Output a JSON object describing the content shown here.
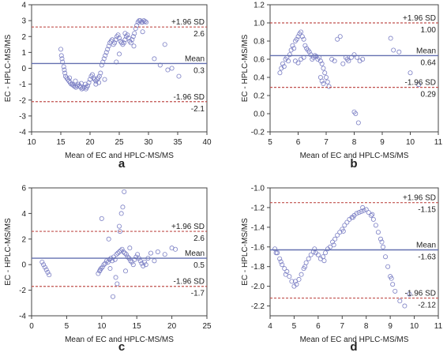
{
  "chart_data": [
    {
      "type": "scatter",
      "panel_label": "a",
      "xlabel": "Mean of EC and HPLC-MS/MS",
      "ylabel": "EC - HPLC-MS/MS",
      "xlim": [
        10,
        40
      ],
      "ylim": [
        -4,
        4
      ],
      "xticks": [
        "10",
        "15",
        "20",
        "25",
        "30",
        "35",
        "40"
      ],
      "yticks": [
        "-4",
        "-3",
        "-2",
        "-1",
        "0",
        "1",
        "2",
        "3",
        "4"
      ],
      "lines": [
        {
          "kind": "upper",
          "value": 2.6,
          "label": "+1.96 SD",
          "value_label": "2.6"
        },
        {
          "kind": "mean",
          "value": 0.3,
          "label": "Mean",
          "value_label": "0.3"
        },
        {
          "kind": "lower",
          "value": -2.1,
          "label": "-1.96 SD",
          "value_label": "-2.1"
        }
      ],
      "points": {
        "x": [
          15.0,
          15.1,
          15.2,
          15.3,
          15.5,
          15.6,
          15.7,
          15.8,
          16.0,
          16.2,
          16.4,
          16.6,
          16.8,
          17.0,
          17.2,
          17.4,
          17.6,
          17.8,
          18.0,
          18.2,
          18.4,
          18.6,
          18.8,
          19.0,
          19.2,
          19.3,
          19.4,
          19.6,
          19.8,
          20.0,
          20.2,
          20.4,
          20.6,
          20.8,
          21.0,
          21.2,
          21.4,
          21.6,
          21.5,
          21.8,
          22.0,
          22.2,
          22.4,
          22.6,
          22.8,
          23.0,
          23.2,
          23.4,
          23.6,
          23.8,
          24.0,
          24.2,
          24.4,
          24.6,
          24.8,
          25.0,
          25.2,
          25.4,
          25.6,
          25.8,
          26.0,
          26.2,
          26.4,
          26.6,
          26.8,
          27.0,
          27.2,
          27.4,
          27.6,
          27.8,
          28.0,
          28.2,
          28.4,
          28.6,
          28.8,
          29.0,
          29.2,
          29.4,
          29.6,
          29.0,
          31.0,
          32.0,
          32.8,
          33.3,
          34.0,
          35.2,
          24.5,
          25.0,
          26.0,
          27.5,
          21.0,
          22.5,
          16.5,
          17.5,
          18.5
        ],
        "y": [
          1.2,
          0.8,
          0.6,
          0.4,
          0.1,
          -0.1,
          -0.3,
          -0.5,
          -0.6,
          -0.7,
          -0.8,
          -0.9,
          -1.0,
          -1.0,
          -1.1,
          -1.15,
          -1.2,
          -1.1,
          -1.0,
          -1.1,
          -1.2,
          -1.3,
          -1.25,
          -1.2,
          -1.0,
          -1.3,
          -1.2,
          -1.1,
          -0.9,
          -0.7,
          -0.5,
          -0.4,
          -0.6,
          -0.7,
          -0.8,
          -0.7,
          -0.6,
          -0.5,
          -0.9,
          -0.3,
          0.2,
          0.4,
          0.6,
          0.8,
          1.0,
          1.2,
          1.4,
          1.6,
          1.7,
          1.8,
          1.5,
          1.6,
          1.8,
          2.0,
          2.1,
          1.9,
          1.7,
          1.6,
          1.5,
          1.6,
          1.8,
          2.0,
          2.1,
          1.9,
          1.7,
          1.6,
          1.8,
          2.0,
          2.2,
          2.5,
          2.7,
          2.9,
          3.0,
          3.0,
          2.9,
          2.9,
          3.0,
          2.95,
          2.9,
          2.3,
          0.6,
          0.2,
          1.5,
          -0.1,
          0.0,
          -0.5,
          0.4,
          0.9,
          2.2,
          1.4,
          -1.0,
          -0.7,
          -0.6,
          -0.8,
          -0.95
        ]
      }
    },
    {
      "type": "scatter",
      "panel_label": "b",
      "xlabel": "Mean of EC and HPLC-MS/MS",
      "ylabel": "EC - HPLC-MS/MS",
      "xlim": [
        5,
        11
      ],
      "ylim": [
        -0.2,
        1.2
      ],
      "xticks": [
        "5",
        "6",
        "7",
        "8",
        "9",
        "10",
        "11"
      ],
      "yticks": [
        "-0.2",
        "0.0",
        "0.2",
        "0.4",
        "0.6",
        "0.8",
        "1.0",
        "1.2"
      ],
      "lines": [
        {
          "kind": "upper",
          "value": 1.0,
          "label": "+1.96 SD",
          "value_label": "1.00"
        },
        {
          "kind": "mean",
          "value": 0.64,
          "label": "Mean",
          "value_label": "0.64"
        },
        {
          "kind": "lower",
          "value": 0.29,
          "label": "-1.96 SD",
          "value_label": "0.29"
        }
      ],
      "points": {
        "x": [
          5.35,
          5.4,
          5.45,
          5.5,
          5.55,
          5.6,
          5.65,
          5.7,
          5.75,
          5.8,
          5.85,
          5.9,
          5.95,
          6.0,
          6.05,
          6.1,
          6.15,
          6.2,
          6.25,
          6.3,
          6.35,
          6.4,
          6.45,
          6.5,
          6.55,
          6.6,
          6.65,
          6.7,
          6.75,
          6.8,
          6.85,
          6.9,
          6.95,
          7.0,
          7.05,
          7.1,
          7.2,
          7.3,
          7.4,
          7.5,
          7.6,
          7.7,
          7.75,
          7.8,
          7.9,
          8.0,
          8.1,
          8.2,
          8.3,
          8.0,
          8.05,
          8.15,
          9.3,
          9.4,
          9.6,
          10.0,
          10.3,
          5.9,
          6.0,
          6.1,
          6.2,
          6.8,
          6.85,
          6.9
        ],
        "y": [
          0.45,
          0.5,
          0.55,
          0.52,
          0.6,
          0.62,
          0.58,
          0.65,
          0.7,
          0.75,
          0.72,
          0.8,
          0.82,
          0.85,
          0.88,
          0.9,
          0.85,
          0.82,
          0.75,
          0.72,
          0.7,
          0.68,
          0.65,
          0.6,
          0.62,
          0.64,
          0.63,
          0.6,
          0.62,
          0.58,
          0.55,
          0.5,
          0.45,
          0.4,
          0.35,
          0.3,
          0.6,
          0.58,
          0.82,
          0.85,
          0.55,
          0.62,
          0.6,
          0.58,
          0.62,
          0.65,
          0.62,
          0.58,
          0.6,
          0.02,
          0.0,
          -0.1,
          0.83,
          0.7,
          0.68,
          0.45,
          0.32,
          0.58,
          0.56,
          0.6,
          0.62,
          0.4,
          0.36,
          0.33
        ]
      }
    },
    {
      "type": "scatter",
      "panel_label": "c",
      "xlabel": "Mean of EC and HPLC-MS/MS",
      "ylabel": "EC - HPLC-MS/MS",
      "xlim": [
        0,
        25
      ],
      "ylim": [
        -4,
        6
      ],
      "xticks": [
        "0",
        "5",
        "10",
        "15",
        "20",
        "25"
      ],
      "yticks": [
        "-4",
        "-2",
        "0",
        "2",
        "4",
        "6"
      ],
      "lines": [
        {
          "kind": "upper",
          "value": 2.6,
          "label": "+1.96 SD",
          "value_label": "2.6"
        },
        {
          "kind": "mean",
          "value": 0.5,
          "label": "Mean",
          "value_label": "0.5"
        },
        {
          "kind": "lower",
          "value": -1.7,
          "label": "-1.96 SD",
          "value_label": "-1.7"
        }
      ],
      "points": {
        "x": [
          1.5,
          1.7,
          1.9,
          2.1,
          2.3,
          2.5,
          9.5,
          9.7,
          9.9,
          10.1,
          10.3,
          10.5,
          10.7,
          10.9,
          11.1,
          11.3,
          11.5,
          11.7,
          11.9,
          12.1,
          12.3,
          12.5,
          12.7,
          12.9,
          13.1,
          13.3,
          13.5,
          13.7,
          13.9,
          14.1,
          14.3,
          14.5,
          14.7,
          14.9,
          15.1,
          15.3,
          15.5,
          15.7,
          15.9,
          16.1,
          16.3,
          16.6,
          17.0,
          17.5,
          18.0,
          19.0,
          20.0,
          20.5,
          10.0,
          11.0,
          12.5,
          13.0,
          13.2,
          12.8,
          12.2,
          11.6,
          12.0,
          12.6,
          13.4,
          14.0,
          9.8,
          11.2
        ],
        "y": [
          0.2,
          0.0,
          -0.2,
          -0.4,
          -0.6,
          -0.8,
          -0.7,
          -0.5,
          -0.3,
          -0.2,
          0.0,
          0.1,
          0.3,
          0.2,
          0.4,
          0.5,
          0.3,
          0.6,
          0.4,
          0.8,
          0.9,
          1.0,
          1.1,
          1.2,
          1.0,
          0.9,
          0.8,
          0.6,
          0.5,
          0.3,
          0.2,
          0.0,
          0.4,
          0.6,
          0.8,
          0.5,
          0.3,
          0.1,
          -0.1,
          0.2,
          0.0,
          0.5,
          0.9,
          0.3,
          1.0,
          0.8,
          1.3,
          1.2,
          3.6,
          2.0,
          3.0,
          4.5,
          5.7,
          4.0,
          -1.5,
          -2.5,
          -1.0,
          2.6,
          -0.5,
          1.3,
          -0.4,
          -0.3
        ]
      }
    },
    {
      "type": "scatter",
      "panel_label": "d",
      "xlabel": "Mean of EC and HPLC-MS/MS",
      "ylabel": "EC - HPLC-MS/MS",
      "xlim": [
        4,
        11
      ],
      "ylim": [
        -2.3,
        -1.0
      ],
      "xticks": [
        "4",
        "5",
        "6",
        "7",
        "8",
        "9",
        "10",
        "11"
      ],
      "yticks": [
        "-2.2",
        "-2.0",
        "-1.8",
        "-1.6",
        "-1.4",
        "-1.2",
        "-1.0"
      ],
      "lines": [
        {
          "kind": "upper",
          "value": -1.15,
          "label": "+1.96 SD",
          "value_label": "-1.15"
        },
        {
          "kind": "mean",
          "value": -1.63,
          "label": "Mean",
          "value_label": "-1.63"
        },
        {
          "kind": "lower",
          "value": -2.12,
          "label": "-1.96 SD",
          "value_label": "-2.12"
        }
      ],
      "points": {
        "x": [
          4.2,
          4.3,
          4.4,
          4.5,
          4.6,
          4.7,
          4.8,
          4.9,
          5.0,
          5.1,
          5.2,
          5.3,
          5.4,
          5.5,
          5.6,
          5.7,
          5.8,
          5.9,
          6.0,
          6.1,
          6.2,
          6.3,
          6.4,
          6.5,
          6.6,
          6.7,
          6.8,
          6.9,
          7.0,
          7.1,
          7.2,
          7.3,
          7.4,
          7.5,
          7.6,
          7.7,
          7.8,
          7.9,
          8.0,
          8.1,
          8.2,
          8.3,
          8.4,
          8.5,
          8.6,
          8.7,
          8.8,
          8.9,
          9.0,
          9.1,
          9.2,
          9.4,
          9.6,
          9.8,
          4.25,
          4.45,
          4.65,
          5.05,
          5.45,
          5.85,
          6.25,
          6.65,
          7.05,
          7.45,
          7.85,
          8.25,
          8.65,
          9.05
        ],
        "y": [
          -1.62,
          -1.66,
          -1.72,
          -1.78,
          -1.82,
          -1.85,
          -1.9,
          -1.95,
          -2.0,
          -1.98,
          -1.93,
          -1.88,
          -1.82,
          -1.76,
          -1.72,
          -1.68,
          -1.65,
          -1.66,
          -1.68,
          -1.72,
          -1.7,
          -1.66,
          -1.62,
          -1.6,
          -1.55,
          -1.52,
          -1.48,
          -1.45,
          -1.42,
          -1.38,
          -1.35,
          -1.32,
          -1.3,
          -1.28,
          -1.26,
          -1.25,
          -1.24,
          -1.23,
          -1.22,
          -1.25,
          -1.28,
          -1.32,
          -1.38,
          -1.45,
          -1.52,
          -1.6,
          -1.7,
          -1.8,
          -1.9,
          -1.98,
          -2.05,
          -2.15,
          -2.2,
          -2.08,
          -1.66,
          -1.75,
          -1.88,
          -1.95,
          -1.8,
          -1.62,
          -1.74,
          -1.58,
          -1.44,
          -1.3,
          -1.2,
          -1.27,
          -1.55,
          -1.92
        ]
      }
    }
  ]
}
